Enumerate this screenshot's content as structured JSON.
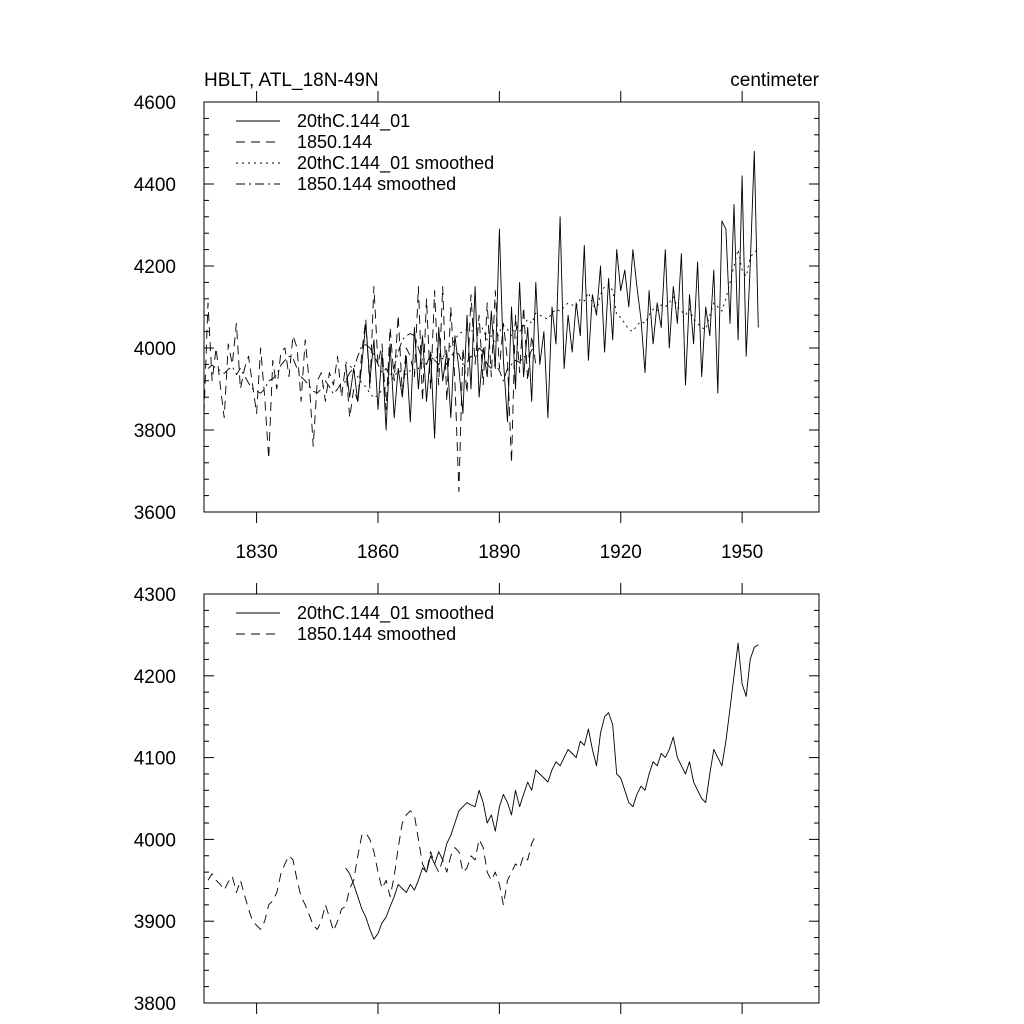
{
  "chart_data": [
    {
      "type": "line",
      "title": "HBLT, ATL_18N-49N",
      "units": "centimeter",
      "xlabel": "",
      "ylabel": "",
      "xlim": [
        1817,
        1969
      ],
      "ylim": [
        3600,
        4600
      ],
      "xticks": [
        1830,
        1860,
        1890,
        1920,
        1950
      ],
      "yticks": [
        3600,
        3800,
        4000,
        4200,
        4400,
        4600
      ],
      "legend_position": "top-left",
      "series": [
        {
          "name": "20thC.144_01",
          "style": "solid",
          "x_start": 1852,
          "values": [
            3960,
            3880,
            3950,
            3870,
            3960,
            4060,
            3920,
            4020,
            3850,
            3990,
            3800,
            4010,
            3830,
            3950,
            3880,
            3980,
            3820,
            4050,
            3900,
            4030,
            3870,
            3990,
            3780,
            4050,
            3920,
            3990,
            3830,
            4030,
            3950,
            3840,
            4080,
            3900,
            4150,
            3880,
            4000,
            3930,
            4090,
            3950,
            4290,
            3970,
            3820,
            4100,
            3900,
            4160,
            3930,
            4050,
            3870,
            4160,
            3960,
            4040,
            3830,
            4100,
            4010,
            4320,
            3950,
            4080,
            3990,
            4110,
            4030,
            4250,
            3970,
            4130,
            4080,
            4200,
            3990,
            4170,
            4020,
            4240,
            4140,
            4190,
            4100,
            4240,
            4150,
            4070,
            3940,
            4140,
            4010,
            4110,
            4050,
            4240,
            4000,
            4150,
            4060,
            4230,
            3910,
            4130,
            4010,
            4210,
            3930,
            4100,
            4030,
            4190,
            3890,
            4310,
            4290,
            4060,
            4350,
            4020,
            4420,
            3980,
            4200,
            4480,
            4050
          ]
        },
        {
          "name": "1850.144",
          "style": "dashed",
          "x_start": 1817,
          "values": [
            3840,
            4110,
            3920,
            4000,
            3910,
            3830,
            4010,
            3960,
            4060,
            3900,
            3950,
            3980,
            3910,
            3840,
            4000,
            3880,
            3730,
            3970,
            3900,
            3990,
            4000,
            3930,
            4030,
            4000,
            3870,
            4020,
            3920,
            3760,
            3920,
            3940,
            3870,
            3940,
            3910,
            3980,
            3880,
            3960,
            3830,
            3900,
            3870,
            3990,
            4070,
            3900,
            4150,
            3960,
            4010,
            3850,
            4050,
            3920,
            4080,
            3890,
            4000,
            3980,
            3930,
            4150,
            3870,
            4120,
            3900,
            4140,
            3910,
            4150,
            3870,
            4100,
            3920,
            3650,
            4000,
            3890,
            4130,
            3960,
            4080,
            3910,
            4110,
            3930,
            4140,
            3950,
            4060,
            3970,
            3720,
            4080,
            3940,
            4100,
            3920,
            4030,
            3960
          ]
        },
        {
          "name": "20thC.144_01 smoothed",
          "style": "dotted",
          "x_start": 1852,
          "values": [
            3965,
            3958,
            3945,
            3930,
            3915,
            3905,
            3890,
            3878,
            3885,
            3898,
            3905,
            3918,
            3930,
            3945,
            3940,
            3935,
            3945,
            3938,
            3950,
            3965,
            3960,
            3980,
            3970,
            3985,
            3975,
            3995,
            4005,
            4020,
            4035,
            4040,
            4045,
            4042,
            4040,
            4060,
            4045,
            4020,
            4030,
            4010,
            4040,
            4055,
            4045,
            4030,
            4060,
            4040,
            4055,
            4070,
            4060,
            4085,
            4080,
            4075,
            4070,
            4085,
            4095,
            4090,
            4100,
            4110,
            4105,
            4100,
            4120,
            4115,
            4135,
            4110,
            4090,
            4130,
            4150,
            4155,
            4140,
            4080,
            4075,
            4060,
            4045,
            4040,
            4055,
            4065,
            4060,
            4080,
            4095,
            4090,
            4105,
            4100,
            4110,
            4125,
            4100,
            4090,
            4080,
            4095,
            4070,
            4060,
            4050,
            4045,
            4080,
            4110,
            4100,
            4090,
            4120,
            4160,
            4200,
            4240,
            4190,
            4175,
            4220,
            4235,
            4238
          ]
        },
        {
          "name": "1850.144 smoothed",
          "style": "dashdot",
          "x_start": 1818,
          "values": [
            3950,
            3958,
            3950,
            3945,
            3938,
            3948,
            3955,
            3935,
            3950,
            3932,
            3915,
            3900,
            3895,
            3890,
            3900,
            3920,
            3925,
            3935,
            3958,
            3970,
            3980,
            3975,
            3950,
            3930,
            3920,
            3908,
            3895,
            3890,
            3900,
            3920,
            3905,
            3888,
            3900,
            3915,
            3918,
            3940,
            3950,
            3980,
            4005,
            4008,
            4000,
            3985,
            3960,
            3940,
            3950,
            3930,
            3955,
            3990,
            4020,
            4030,
            4035,
            4030,
            4000,
            3970,
            3960,
            3985,
            3970,
            3960,
            3975,
            3960,
            3980,
            3990,
            3985,
            3960,
            3965,
            3980,
            3975,
            4000,
            3990,
            3960,
            3950,
            3960,
            3945,
            3920,
            3950,
            3960,
            3970,
            3965,
            3980,
            3975,
            3995,
            4005
          ]
        }
      ]
    },
    {
      "type": "line",
      "title": "",
      "xlabel": "",
      "ylabel": "",
      "xlim": [
        1817,
        1969
      ],
      "ylim": [
        3800,
        4300
      ],
      "xticks": [
        1830,
        1860,
        1890,
        1920,
        1950
      ],
      "yticks": [
        3800,
        3900,
        4000,
        4100,
        4200,
        4300
      ],
      "legend_position": "top-left",
      "series": [
        {
          "name": "20thC.144_01 smoothed",
          "style": "solid",
          "x_start": 1852,
          "values": [
            3965,
            3958,
            3945,
            3930,
            3915,
            3905,
            3890,
            3878,
            3885,
            3898,
            3905,
            3918,
            3930,
            3945,
            3940,
            3935,
            3945,
            3938,
            3950,
            3965,
            3960,
            3980,
            3970,
            3985,
            3975,
            3995,
            4005,
            4020,
            4035,
            4040,
            4045,
            4042,
            4040,
            4060,
            4045,
            4020,
            4030,
            4010,
            4040,
            4055,
            4045,
            4030,
            4060,
            4040,
            4055,
            4070,
            4060,
            4085,
            4080,
            4075,
            4070,
            4085,
            4095,
            4090,
            4100,
            4110,
            4105,
            4100,
            4120,
            4115,
            4135,
            4110,
            4090,
            4130,
            4150,
            4155,
            4140,
            4080,
            4075,
            4060,
            4045,
            4040,
            4055,
            4065,
            4060,
            4080,
            4095,
            4090,
            4105,
            4100,
            4110,
            4125,
            4100,
            4090,
            4080,
            4095,
            4070,
            4060,
            4050,
            4045,
            4080,
            4110,
            4100,
            4090,
            4120,
            4160,
            4200,
            4240,
            4190,
            4175,
            4220,
            4235,
            4238
          ]
        },
        {
          "name": "1850.144 smoothed",
          "style": "dashed",
          "x_start": 1818,
          "values": [
            3950,
            3958,
            3950,
            3945,
            3938,
            3948,
            3955,
            3935,
            3950,
            3932,
            3915,
            3900,
            3895,
            3890,
            3900,
            3920,
            3925,
            3935,
            3958,
            3970,
            3980,
            3975,
            3950,
            3930,
            3920,
            3908,
            3895,
            3890,
            3900,
            3920,
            3905,
            3888,
            3900,
            3915,
            3918,
            3940,
            3950,
            3980,
            4005,
            4008,
            4000,
            3985,
            3960,
            3940,
            3950,
            3930,
            3955,
            3990,
            4020,
            4030,
            4035,
            4030,
            4000,
            3970,
            3960,
            3985,
            3970,
            3960,
            3975,
            3960,
            3980,
            3990,
            3985,
            3960,
            3965,
            3980,
            3975,
            4000,
            3990,
            3960,
            3950,
            3960,
            3945,
            3920,
            3950,
            3960,
            3970,
            3965,
            3980,
            3975,
            3995,
            4005
          ]
        }
      ]
    }
  ]
}
